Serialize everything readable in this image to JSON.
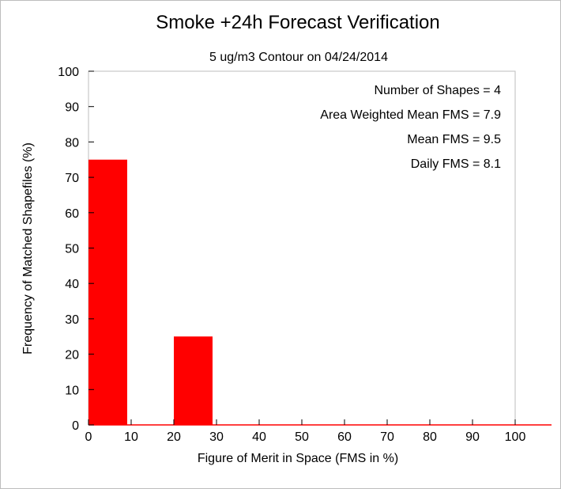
{
  "chart_data": {
    "type": "bar",
    "title": "Smoke +24h Forecast Verification",
    "subtitle": "5 ug/m3 Contour on 04/24/2014",
    "xlabel": "Figure of Merit in Space (FMS in %)",
    "ylabel": "Frequency of Matched Shapefiles (%)",
    "xlim": [
      0,
      100
    ],
    "ylim": [
      0,
      100
    ],
    "xticks": [
      0,
      10,
      20,
      30,
      40,
      50,
      60,
      70,
      80,
      90,
      100
    ],
    "yticks": [
      0,
      10,
      20,
      30,
      40,
      50,
      60,
      70,
      80,
      90,
      100
    ],
    "bin_width": 10,
    "bins": [
      {
        "x0": 0,
        "x1": 10,
        "value": 75
      },
      {
        "x0": 10,
        "x1": 20,
        "value": 0
      },
      {
        "x0": 20,
        "x1": 30,
        "value": 25
      },
      {
        "x0": 30,
        "x1": 40,
        "value": 0
      },
      {
        "x0": 40,
        "x1": 50,
        "value": 0
      },
      {
        "x0": 50,
        "x1": 60,
        "value": 0
      },
      {
        "x0": 60,
        "x1": 70,
        "value": 0
      },
      {
        "x0": 70,
        "x1": 80,
        "value": 0
      },
      {
        "x0": 80,
        "x1": 90,
        "value": 0
      },
      {
        "x0": 90,
        "x1": 100,
        "value": 0
      }
    ],
    "bar_color": "#ff0000",
    "grid": false,
    "annotations": [
      "Number of Shapes = 4",
      "Area Weighted Mean FMS = 7.9",
      "Mean FMS = 9.5",
      "Daily FMS = 8.1"
    ],
    "annotation_position": "top-right"
  }
}
